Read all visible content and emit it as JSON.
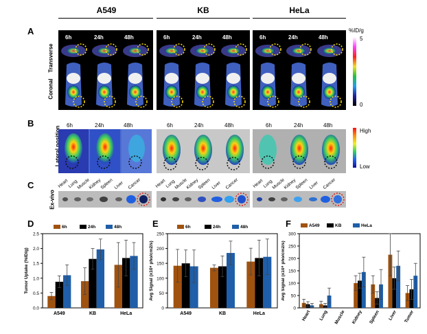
{
  "panels": {
    "A": "A",
    "B": "B",
    "C": "C",
    "D": "D",
    "E": "E",
    "F": "F"
  },
  "groups": [
    "A549",
    "KB",
    "HeLa"
  ],
  "panel_a": {
    "row_labels": [
      "Transverse",
      "Coronal"
    ],
    "times": [
      "6h",
      "24h",
      "48h"
    ],
    "scale_unit": "%ID/g",
    "scale_max": "5",
    "scale_min": "0"
  },
  "panel_b": {
    "row_label": "Lateral  position",
    "times": [
      "6h",
      "24h",
      "48h"
    ],
    "scale_high": "High",
    "scale_low": "Low"
  },
  "panel_c": {
    "row_label": "Ex-vivo",
    "organs": [
      "Heart",
      "Lung",
      "Muscle",
      "Kidney",
      "Spleen",
      "Liver",
      "Cancer"
    ]
  },
  "colors": {
    "brown": "#a0520f",
    "black": "#000000",
    "blue": "#1f5ea8"
  },
  "chart_data": [
    {
      "id": "D",
      "type": "bar",
      "ylabel": "Tumor Uptake (%ID/g)",
      "categories": [
        "A549",
        "KB",
        "HeLa"
      ],
      "ylim": [
        0,
        2.5
      ],
      "yticks": [
        "0.0",
        "0.5",
        "1.0",
        "1.5",
        "2.0",
        "2.5"
      ],
      "series": [
        {
          "name": "6h",
          "values": [
            0.4,
            0.9,
            1.45
          ],
          "errors": [
            0.12,
            0.45,
            0.75
          ]
        },
        {
          "name": "24h",
          "values": [
            0.88,
            1.65,
            1.68
          ],
          "errors": [
            0.2,
            0.35,
            0.6
          ]
        },
        {
          "name": "48h",
          "values": [
            1.1,
            1.97,
            1.75
          ],
          "errors": [
            0.35,
            0.35,
            0.45
          ]
        }
      ]
    },
    {
      "id": "E",
      "type": "bar",
      "ylabel": "Avg Signal (x10⁸ pho/cm2/s)",
      "categories": [
        "A549",
        "KB",
        "HeLa"
      ],
      "ylim": [
        0,
        250
      ],
      "yticks": [
        "0",
        "50",
        "100",
        "150",
        "200",
        "250"
      ],
      "series": [
        {
          "name": "6h",
          "values": [
            142,
            135,
            156
          ],
          "errors": [
            55,
            10,
            45
          ]
        },
        {
          "name": "24h",
          "values": [
            150,
            140,
            168
          ],
          "errors": [
            45,
            35,
            60
          ]
        },
        {
          "name": "48h",
          "values": [
            140,
            185,
            172
          ],
          "errors": [
            55,
            40,
            60
          ]
        }
      ]
    },
    {
      "id": "F",
      "type": "bar",
      "ylabel": "Avg Signal (x10⁸ pho/cm2/s)",
      "categories": [
        "Heart",
        "Lung",
        "Muscle",
        "Kidney",
        "Spleen",
        "Liver",
        "Tumor"
      ],
      "ylim": [
        0,
        300
      ],
      "yticks": [
        "0",
        "50",
        "100",
        "150",
        "200",
        "250",
        "300"
      ],
      "series": [
        {
          "name": "A549",
          "values": [
            20,
            15,
            0,
            100,
            95,
            215,
            60
          ],
          "errors": [
            15,
            12,
            0,
            30,
            35,
            85,
            30
          ]
        },
        {
          "name": "KB",
          "values": [
            15,
            10,
            0,
            110,
            40,
            120,
            75
          ],
          "errors": [
            10,
            8,
            0,
            30,
            25,
            45,
            40
          ]
        },
        {
          "name": "HeLa",
          "values": [
            10,
            50,
            0,
            145,
            95,
            170,
            130
          ],
          "errors": [
            8,
            30,
            0,
            60,
            60,
            60,
            50
          ]
        }
      ]
    }
  ]
}
